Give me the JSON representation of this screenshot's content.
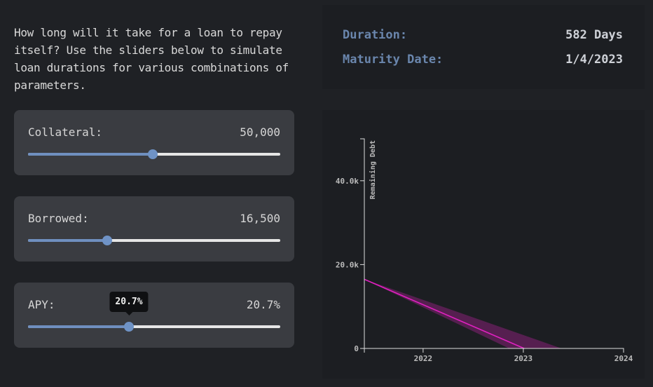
{
  "intro": "How long will it take for a loan to repay itself? Use the sliders below to simulate loan durations for various combinations of parameters.",
  "sliders": [
    {
      "label": "Collateral:",
      "value": "50,000",
      "position": 0.494
    },
    {
      "label": "Borrowed:",
      "value": "16,500",
      "position": 0.314
    },
    {
      "label": "APY:",
      "value": "20.7%",
      "position": 0.4,
      "tooltip": "20.7%"
    }
  ],
  "summary": {
    "duration_label": "Duration:",
    "duration_value": "582 Days",
    "maturity_label": "Maturity Date:",
    "maturity_value": "1/4/2023"
  },
  "colors": {
    "accent": "#6f93c6",
    "line": "#e020c0",
    "band": "#6a2060"
  },
  "chart_data": {
    "type": "area",
    "ylabel": "Remaining Debt",
    "xlabel": "",
    "xlim": [
      "2021-06-01",
      "2024-01-01"
    ],
    "ylim": [
      0,
      50000
    ],
    "x_ticks": [
      "2022",
      "2023",
      "2024"
    ],
    "y_ticks": [
      {
        "value": 0,
        "label": "0"
      },
      {
        "value": 20000,
        "label": "20.0k"
      },
      {
        "value": 40000,
        "label": "40.0k"
      }
    ],
    "line": {
      "x": [
        "2021-06-01",
        "2023-01-04"
      ],
      "y": [
        16500,
        0
      ]
    },
    "band": {
      "upper": {
        "x": [
          "2021-06-01",
          "2023-05-20"
        ],
        "y": [
          16500,
          0
        ]
      },
      "lower": {
        "x": [
          "2021-06-01",
          "2022-11-10"
        ],
        "y": [
          16500,
          0
        ]
      }
    },
    "grid": false
  }
}
